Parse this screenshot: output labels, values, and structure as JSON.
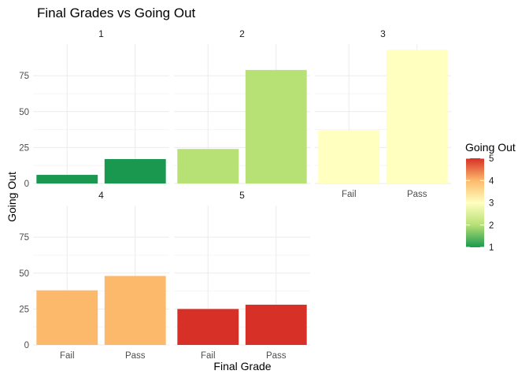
{
  "chart_data": {
    "type": "bar",
    "title": "Final Grades vs Going Out",
    "xlabel": "Final Grade",
    "ylabel": "Going Out",
    "categories": [
      "Fail",
      "Pass"
    ],
    "ylim": [
      0,
      97
    ],
    "yticks": [
      0,
      25,
      50,
      75
    ],
    "facets": [
      {
        "label": "1",
        "level": 1,
        "values": [
          6,
          17
        ]
      },
      {
        "label": "2",
        "level": 2,
        "values": [
          24,
          79
        ]
      },
      {
        "label": "3",
        "level": 3,
        "values": [
          37,
          93
        ]
      },
      {
        "label": "4",
        "level": 4,
        "values": [
          38,
          48
        ]
      },
      {
        "label": "5",
        "level": 5,
        "values": [
          25,
          28
        ]
      }
    ],
    "legend": {
      "title": "Going Out",
      "position": "right",
      "range": [
        1,
        5
      ],
      "ticks": [
        1,
        2,
        3,
        4,
        5
      ],
      "colors": [
        "#1a9850",
        "#b7e075",
        "#ffffbf",
        "#fdb96b",
        "#d73027"
      ]
    },
    "grid": true
  }
}
